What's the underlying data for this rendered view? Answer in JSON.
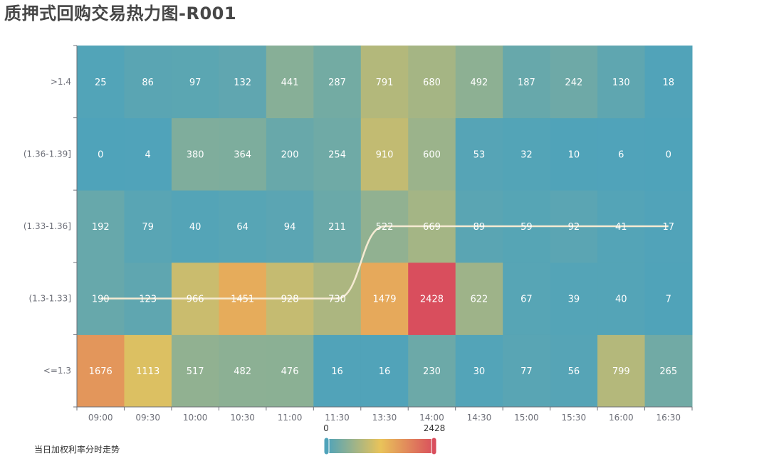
{
  "title": "质押式回购交易热力图-R001",
  "subtitle": "当日加权利率分时走势",
  "visual_map": {
    "min_label": "0",
    "max_label": "2428",
    "colors": [
      "#4fa3ba",
      "#e9c35a",
      "#d94e5d"
    ]
  },
  "chart_data": {
    "type": "heatmap",
    "title": "质押式回购交易热力图-R001",
    "xlabel": "",
    "ylabel": "",
    "x_categories": [
      "09:00",
      "09:30",
      "10:00",
      "10:30",
      "11:00",
      "11:30",
      "13:30",
      "14:00",
      "14:30",
      "15:00",
      "15:30",
      "16:00",
      "16:30"
    ],
    "y_categories": [
      "<=1.3",
      "(1.3-1.33]",
      "(1.33-1.36]",
      "(1.36-1.39]",
      ">1.4"
    ],
    "values": [
      [
        1676,
        1113,
        517,
        482,
        476,
        16,
        16,
        230,
        30,
        77,
        56,
        799,
        265
      ],
      [
        190,
        123,
        966,
        1451,
        928,
        730,
        1479,
        2428,
        622,
        67,
        39,
        40,
        7
      ],
      [
        192,
        79,
        40,
        64,
        94,
        211,
        522,
        669,
        89,
        59,
        92,
        41,
        17
      ],
      [
        0,
        4,
        380,
        364,
        200,
        254,
        910,
        600,
        53,
        32,
        10,
        6,
        0
      ],
      [
        25,
        86,
        97,
        132,
        441,
        287,
        791,
        680,
        492,
        187,
        242,
        130,
        18
      ]
    ],
    "value_range": [
      0,
      2428
    ],
    "overlay_line": {
      "name": "当日加权利率分时走势",
      "y_category_per_x": [
        "(1.3-1.33]",
        "(1.3-1.33]",
        "(1.3-1.33]",
        "(1.3-1.33]",
        "(1.3-1.33]",
        "(1.3-1.33]",
        "(1.33-1.36]",
        "(1.33-1.36]",
        "(1.33-1.36]",
        "(1.33-1.36]",
        "(1.33-1.36]",
        "(1.33-1.36]",
        "(1.33-1.36]"
      ],
      "color": "#f5ead2",
      "smooth": true
    },
    "grid": false,
    "legend_position": "bottom-center (continuous visualMap)"
  }
}
